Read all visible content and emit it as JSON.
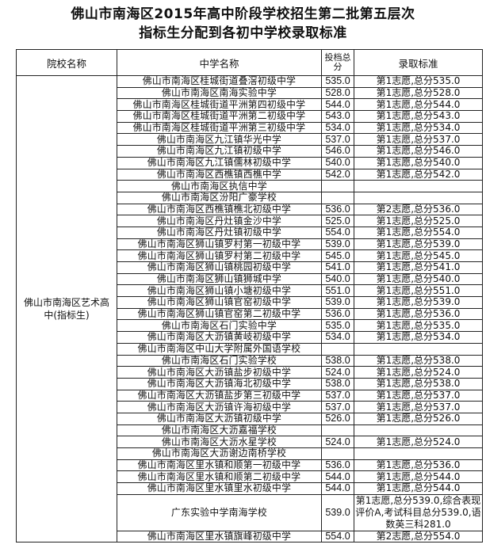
{
  "title_line1": "佛山市南海区2015年高中阶段学校招生第二批第五层次",
  "title_line2": "指标生分配到各初中学校录取标准",
  "headers": {
    "institution": "院校名称",
    "school": "中学名称",
    "score": "投档总分",
    "standard": "录取标准"
  },
  "institution": "佛山市南海区艺术高中(指标生)",
  "rows": [
    {
      "school": "佛山市南海区桂城街道叠滘初级中学",
      "score": "535.0",
      "standard": "第1志愿,总分535.0"
    },
    {
      "school": "佛山市南海区南海实验中学",
      "score": "528.0",
      "standard": "第1志愿,总分528.0"
    },
    {
      "school": "佛山市南海区桂城街道平洲第四初级中学",
      "score": "544.0",
      "standard": "第1志愿,总分544.0"
    },
    {
      "school": "佛山市南海区桂城街道平洲第二初级中学",
      "score": "543.0",
      "standard": "第1志愿,总分543.0"
    },
    {
      "school": "佛山市南海区桂城街道平洲第三初级中学",
      "score": "534.0",
      "standard": "第1志愿,总分534.0"
    },
    {
      "school": "佛山市南海区九江镇华光中学",
      "score": "537.0",
      "standard": "第1志愿,总分537.0"
    },
    {
      "school": "佛山市南海区九江镇初级中学",
      "score": "546.0",
      "standard": "第1志愿,总分546.0"
    },
    {
      "school": "佛山市南海区九江镇儒林初级中学",
      "score": "540.0",
      "standard": "第1志愿,总分540.0"
    },
    {
      "school": "佛山市南海区西樵镇西樵中学",
      "score": "542.0",
      "standard": "第1志愿,总分542.0"
    },
    {
      "school": "佛山市南海区执信中学",
      "score": "",
      "standard": ""
    },
    {
      "school": "佛山市南海区汾阳广豪学校",
      "score": "",
      "standard": ""
    },
    {
      "school": "佛山市南海区西樵镇樵北初级中学",
      "score": "536.0",
      "standard": "第2志愿,总分536.0"
    },
    {
      "school": "佛山市南海区丹灶镇金沙中学",
      "score": "525.0",
      "standard": "第1志愿,总分525.0"
    },
    {
      "school": "佛山市南海区丹灶镇初级中学",
      "score": "554.0",
      "standard": "第1志愿,总分554.0"
    },
    {
      "school": "佛山市南海区狮山镇罗村第一初级中学",
      "score": "539.0",
      "standard": "第1志愿,总分539.0"
    },
    {
      "school": "佛山市南海区狮山镇罗村第二初级中学",
      "score": "545.0",
      "standard": "第1志愿,总分545.0"
    },
    {
      "school": "佛山市南海区狮山镇桃园初级中学",
      "score": "541.0",
      "standard": "第1志愿,总分541.0"
    },
    {
      "school": "佛山市南海区狮山镇狮城中学",
      "score": "540.0",
      "standard": "第1志愿,总分540.0"
    },
    {
      "school": "佛山市南海区狮山镇小塘初级中学",
      "score": "551.0",
      "standard": "第1志愿,总分551.0"
    },
    {
      "school": "佛山市南海区狮山镇官窑初级中学",
      "score": "539.0",
      "standard": "第1志愿,总分539.0"
    },
    {
      "school": "佛山市南海区狮山镇官窑第二初级中学",
      "score": "536.0",
      "standard": "第1志愿,总分536.0"
    },
    {
      "school": "佛山市南海区石门实验中学",
      "score": "535.0",
      "standard": "第1志愿,总分535.0"
    },
    {
      "school": "佛山市南海区大沥镇黄岐初级中学",
      "score": "534.0",
      "standard": "第1志愿,总分534.0"
    },
    {
      "school": "佛山市南海区中山大学附属外国语学校",
      "score": "",
      "standard": ""
    },
    {
      "school": "佛山市南海区石门实验学校",
      "score": "538.0",
      "standard": "第1志愿,总分538.0"
    },
    {
      "school": "佛山市南海区大沥镇盐步初级中学",
      "score": "524.0",
      "standard": "第1志愿,总分524.0"
    },
    {
      "school": "佛山市南海区大沥镇海北初级中学",
      "score": "538.0",
      "standard": "第1志愿,总分538.0"
    },
    {
      "school": "佛山市南海区大沥镇盐步第三初级中学",
      "score": "537.0",
      "standard": "第1志愿,总分537.0"
    },
    {
      "school": "佛山市南海区大沥镇许海初级中学",
      "score": "537.0",
      "standard": "第1志愿,总分537.0"
    },
    {
      "school": "佛山市南海区大沥镇初级中学",
      "score": "526.0",
      "standard": "第1志愿,总分526.0"
    },
    {
      "school": "佛山市南海区大沥嘉福学校",
      "score": "",
      "standard": ""
    },
    {
      "school": "佛山市南海区大沥水星学校",
      "score": "524.0",
      "standard": "第1志愿,总分524.0"
    },
    {
      "school": "佛山市南海区大沥谢边南桥学校",
      "score": "",
      "standard": ""
    },
    {
      "school": "佛山市南海区里水镇和顺第一初级中学",
      "score": "536.0",
      "standard": "第1志愿,总分536.0"
    },
    {
      "school": "佛山市南海区里水镇和顺第二初级中学",
      "score": "544.0",
      "standard": "第1志愿,总分544.0"
    },
    {
      "school": "佛山市南海区里水镇里水初级中学",
      "score": "544.0",
      "standard": "第1志愿,总分544.0"
    },
    {
      "school": "广东实验中学南海学校",
      "score": "539.0",
      "standard": "第1志愿,总分539.0,综合表现评价A,考试科目总分539.0,语数英三科281.0",
      "multiline": true
    },
    {
      "school": "佛山市南海区里水镇旗峰初级中学",
      "score": "554.0",
      "standard": "第2志愿,总分554.0"
    }
  ]
}
